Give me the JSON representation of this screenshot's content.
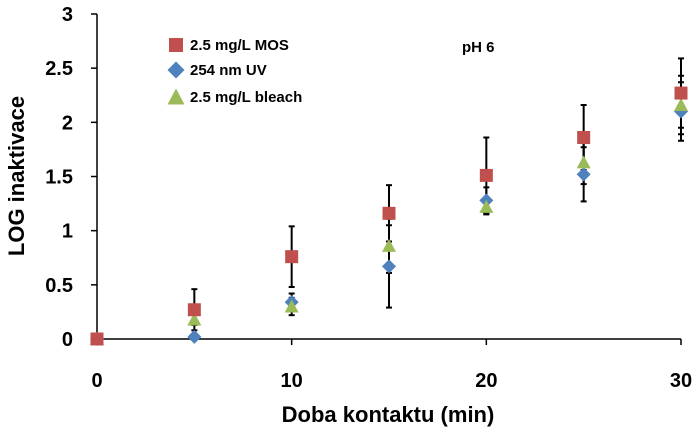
{
  "chart_data": {
    "type": "scatter",
    "title": "",
    "annotation": "pH 6",
    "xlabel": "Doba kontaktu (min)",
    "ylabel": "LOG inaktivace",
    "xlim": [
      0,
      30
    ],
    "ylim": [
      0,
      3
    ],
    "x_ticks": [
      0,
      10,
      20,
      30
    ],
    "y_ticks": [
      0,
      0.5,
      1,
      1.5,
      2,
      2.5,
      3
    ],
    "x_tick_labels": [
      "0",
      "10",
      "20",
      "30"
    ],
    "y_tick_labels": [
      "0",
      "0.5",
      "1",
      "1.5",
      "2",
      "2.5",
      "3"
    ],
    "grid": false,
    "legend_position": "top-left",
    "x": [
      0,
      5,
      10,
      15,
      20,
      25,
      30
    ],
    "series": [
      {
        "name": "2.5 mg/L MOS",
        "marker": "square",
        "color": "#c0504d",
        "values": [
          0,
          0.27,
          0.76,
          1.16,
          1.51,
          1.86,
          2.27
        ],
        "error": [
          0,
          0.19,
          0.28,
          0.26,
          0.35,
          0.3,
          0.32
        ]
      },
      {
        "name": "254 nm UV",
        "marker": "diamond",
        "color": "#4f81bd",
        "values": [
          0,
          0.02,
          0.34,
          0.67,
          1.28,
          1.52,
          2.1
        ],
        "error": [
          0,
          0,
          0.08,
          0.38,
          0.12,
          0.25,
          0.27
        ]
      },
      {
        "name": "2.5 mg/L bleach",
        "marker": "triangle",
        "color": "#9bbb59",
        "values": [
          0,
          0.18,
          0.3,
          0.86,
          1.22,
          1.63,
          2.16
        ],
        "error": [
          0,
          0.05,
          0.08,
          0.25,
          0.07,
          0.2,
          0.27
        ]
      }
    ]
  }
}
